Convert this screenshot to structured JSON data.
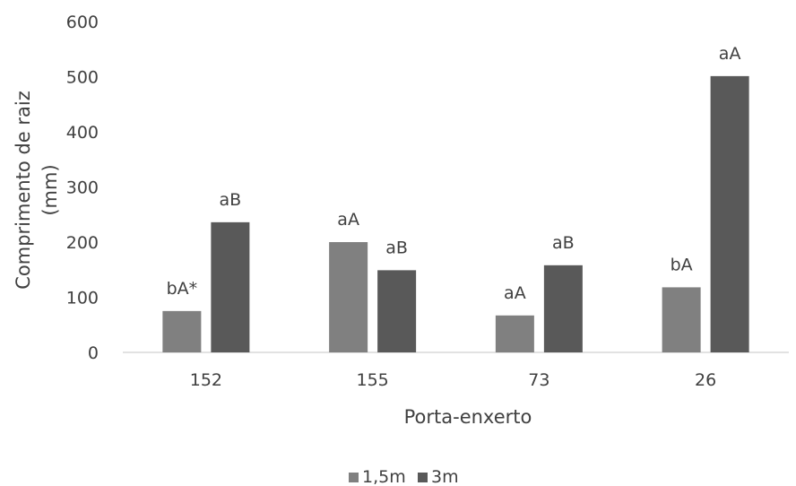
{
  "chart_data": {
    "type": "bar",
    "categories": [
      "152",
      "155",
      "73",
      "26"
    ],
    "series": [
      {
        "name": "1,5m",
        "color": "#808080",
        "values": [
          75,
          200,
          67,
          118
        ],
        "labels": [
          "bA*",
          "aA",
          "aA",
          "bA"
        ]
      },
      {
        "name": "3m",
        "color": "#595959",
        "values": [
          236,
          149,
          158,
          501
        ],
        "labels": [
          "aB",
          "aB",
          "aB",
          "aA"
        ]
      }
    ],
    "xlabel": "Porta-enxerto",
    "ylabel_lines": [
      "Comprimento de raiz",
      "(mm)"
    ],
    "ylim": [
      0,
      600
    ],
    "yticks": [
      0,
      100,
      200,
      300,
      400,
      500,
      600
    ],
    "grid": false,
    "legend_position": "bottom"
  }
}
